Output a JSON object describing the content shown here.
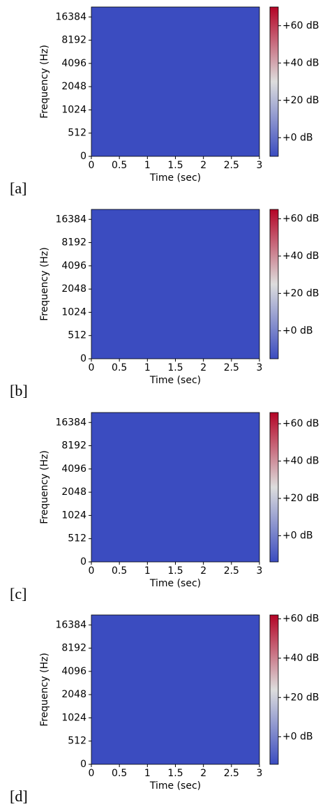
{
  "chart_data": [
    {
      "type": "spectrogram",
      "panel_label": "[a]",
      "xlabel": "Time (sec)",
      "ylabel": "Frequency (Hz)",
      "xlim": [
        0,
        3
      ],
      "xticks": [
        0,
        0.5,
        1,
        1.5,
        2,
        2.5,
        3
      ],
      "ylim": [
        0,
        22050
      ],
      "yticks": [
        0,
        512,
        1024,
        2048,
        4096,
        8192,
        16384
      ],
      "yscale": "symlog",
      "linthresh": 512,
      "colormap": [
        "#3b4cc0",
        "#dddddd",
        "#b40426"
      ],
      "clim": [
        -10,
        70
      ],
      "cticks": [
        {
          "value": 0,
          "label": "+0 dB"
        },
        {
          "value": 20,
          "label": "+20 dB"
        },
        {
          "value": 40,
          "label": "+40 dB"
        },
        {
          "value": 60,
          "label": "+60 dB"
        }
      ]
    },
    {
      "type": "spectrogram",
      "panel_label": "[b]",
      "xlabel": "Time (sec)",
      "ylabel": "Frequency (Hz)",
      "xlim": [
        0,
        3
      ],
      "xticks": [
        0,
        0.5,
        1,
        1.5,
        2,
        2.5,
        3
      ],
      "ylim": [
        0,
        22050
      ],
      "yticks": [
        0,
        512,
        1024,
        2048,
        4096,
        8192,
        16384
      ],
      "yscale": "symlog",
      "linthresh": 512,
      "colormap": [
        "#3b4cc0",
        "#dddddd",
        "#b40426"
      ],
      "clim": [
        -15,
        65
      ],
      "cticks": [
        {
          "value": 0,
          "label": "+0 dB"
        },
        {
          "value": 20,
          "label": "+20 dB"
        },
        {
          "value": 40,
          "label": "+40 dB"
        },
        {
          "value": 60,
          "label": "+60 dB"
        }
      ]
    },
    {
      "type": "spectrogram",
      "panel_label": "[c]",
      "xlabel": "Time (sec)",
      "ylabel": "Frequency (Hz)",
      "xlim": [
        0,
        3
      ],
      "xticks": [
        0,
        0.5,
        1,
        1.5,
        2,
        2.5,
        3
      ],
      "ylim": [
        0,
        22050
      ],
      "yticks": [
        0,
        512,
        1024,
        2048,
        4096,
        8192,
        16384
      ],
      "yscale": "symlog",
      "linthresh": 512,
      "colormap": [
        "#3b4cc0",
        "#dddddd",
        "#b40426"
      ],
      "clim": [
        -14,
        66
      ],
      "cticks": [
        {
          "value": 0,
          "label": "+0 dB"
        },
        {
          "value": 20,
          "label": "+20 dB"
        },
        {
          "value": 40,
          "label": "+40 dB"
        },
        {
          "value": 60,
          "label": "+60 dB"
        }
      ]
    },
    {
      "type": "spectrogram",
      "panel_label": "[d]",
      "xlabel": "Time (sec)",
      "ylabel": "Frequency (Hz)",
      "xlim": [
        0,
        3
      ],
      "xticks": [
        0,
        0.5,
        1,
        1.5,
        2,
        2.5,
        3
      ],
      "ylim": [
        0,
        22050
      ],
      "yticks": [
        0,
        512,
        1024,
        2048,
        4096,
        8192,
        16384
      ],
      "yscale": "symlog",
      "linthresh": 512,
      "colormap": [
        "#3b4cc0",
        "#dddddd",
        "#b40426"
      ],
      "clim": [
        -14,
        62
      ],
      "cticks": [
        {
          "value": 0,
          "label": "+0 dB"
        },
        {
          "value": 20,
          "label": "+20 dB"
        },
        {
          "value": 40,
          "label": "+40 dB"
        },
        {
          "value": 60,
          "label": "+60 dB"
        }
      ]
    }
  ]
}
